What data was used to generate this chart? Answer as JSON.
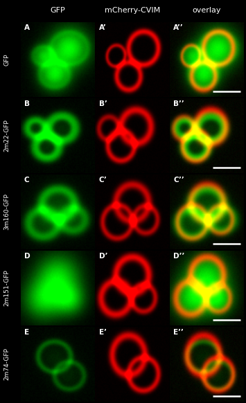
{
  "col_headers": [
    "GFP",
    "mCherry-CVIM",
    "overlay"
  ],
  "row_labels": [
    "GFP",
    "2m22-GFP",
    "3m160-GFP",
    "2m151-GFP",
    "2m74-GFP"
  ],
  "row_panel_letters": [
    [
      "A",
      "A’",
      "A’’"
    ],
    [
      "B",
      "B’",
      "B’’"
    ],
    [
      "C",
      "C’",
      "C’’"
    ],
    [
      "D",
      "D’",
      "D’’"
    ],
    [
      "E",
      "E’",
      "E’’"
    ]
  ],
  "n_rows": 5,
  "n_cols": 3,
  "header_color": "#ffffff",
  "label_color": "#ffffff",
  "panel_letter_color": "#ffffff",
  "header_fontsize": 8,
  "label_fontsize": 6.5,
  "letter_fontsize": 7.5
}
